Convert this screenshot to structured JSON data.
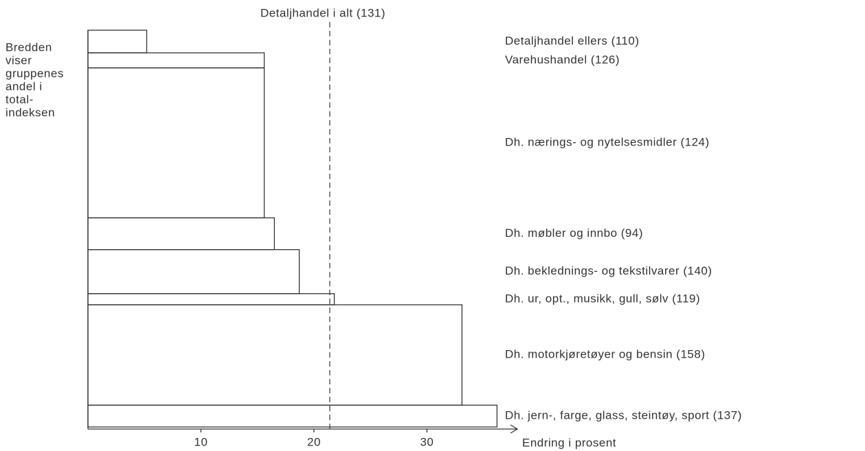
{
  "chart_data": {
    "type": "variable-width-bar",
    "reference_label": "Detaljhandel i alt (131)",
    "reference_value": 21.4,
    "side_note": [
      "Bredden",
      "viser",
      "gruppenes",
      "andel i",
      "total-",
      "indeksen"
    ],
    "x_label": "Endring i prosent",
    "categories": [
      "Detaljhandel ellers (110)",
      "Varehushandel (126)",
      "Dh. nærings- og nytelsesmidler (124)",
      "Dh. møbler og innbo (94)",
      "Dh. beklednings- og tekstilvarer (140)",
      "Dh. ur, opt., musikk, gull, sølv (119)",
      "Dh. motorkjøretøyer og bensin (158)",
      "Dh. jern-, farge, glass, steintøy, sport (137)"
    ],
    "values": [
      5.2,
      15.6,
      15.6,
      16.5,
      18.7,
      21.8,
      33.1,
      36.2
    ],
    "weights": [
      5.7,
      3.8,
      37.8,
      8.0,
      11.1,
      2.8,
      25.3,
      5.5
    ],
    "xlim": [
      0,
      38
    ],
    "xticks": [
      10,
      20,
      30
    ]
  }
}
